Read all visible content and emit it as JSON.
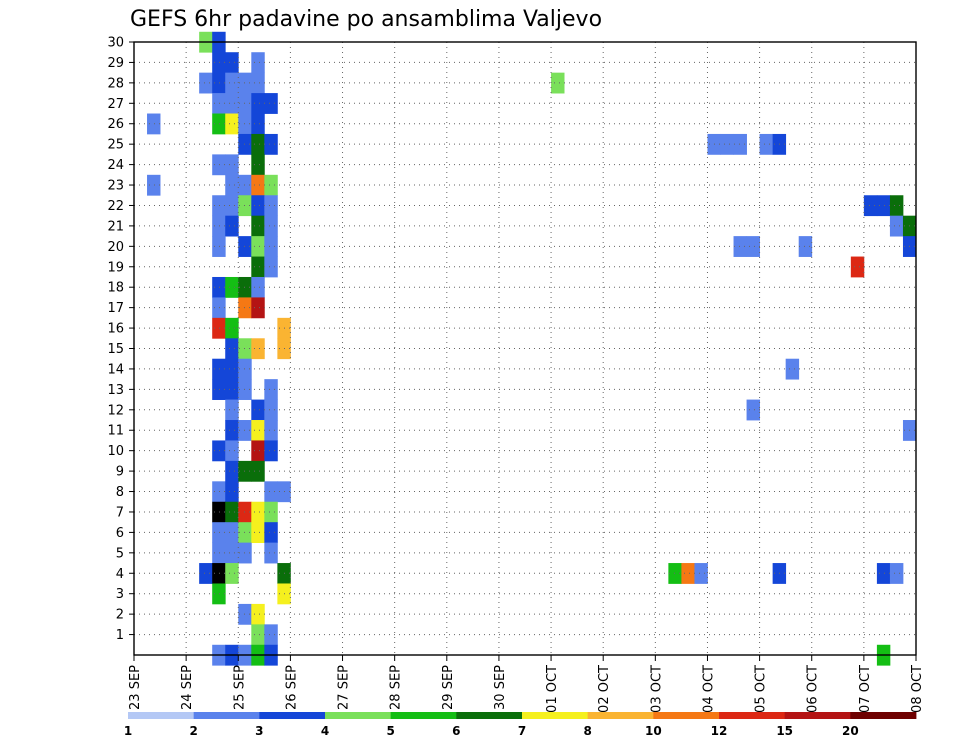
{
  "chart_data": {
    "type": "heatmap",
    "title": "GEFS 6hr padavine po ansamblima Valjevo",
    "y_categories": [
      "1",
      "2",
      "3",
      "4",
      "5",
      "6",
      "7",
      "8",
      "9",
      "10",
      "11",
      "12",
      "13",
      "14",
      "15",
      "16",
      "17",
      "18",
      "19",
      "20",
      "21",
      "22",
      "23",
      "24",
      "25",
      "26",
      "27",
      "28",
      "29",
      "30"
    ],
    "x_tick_labels": [
      "23 SEP",
      "24 SEP",
      "25 SEP",
      "26 SEP",
      "27 SEP",
      "28 SEP",
      "29 SEP",
      "30 SEP",
      "01 OCT",
      "02 OCT",
      "03 OCT",
      "04 OCT",
      "05 OCT",
      "06 OCT",
      "07 OCT",
      "08 OCT"
    ],
    "x_range_days": [
      0,
      15
    ],
    "steps_per_day": 4,
    "grid": "dotted",
    "color_scale": {
      "labels": [
        "1",
        "2",
        "3",
        "4",
        "5",
        "6",
        "7",
        "8",
        "10",
        "12",
        "15",
        "20"
      ],
      "colors": [
        "#b4c8f5",
        "#5a82ec",
        "#1446d8",
        "#7ae05a",
        "#14be14",
        "#0a6e0a",
        "#f5f01e",
        "#fab432",
        "#f57814",
        "#dc2814",
        "#b41414",
        "#6e0000"
      ]
    },
    "cells": [
      [
        30,
        5,
        3
      ],
      [
        30,
        6,
        2
      ],
      [
        29,
        6,
        2
      ],
      [
        29,
        7,
        2
      ],
      [
        29,
        9,
        1
      ],
      [
        28,
        5,
        1
      ],
      [
        28,
        6,
        2
      ],
      [
        28,
        7,
        1
      ],
      [
        28,
        8,
        1
      ],
      [
        28,
        9,
        1
      ],
      [
        28,
        32,
        3
      ],
      [
        27,
        6,
        1
      ],
      [
        27,
        7,
        1
      ],
      [
        27,
        8,
        1
      ],
      [
        27,
        9,
        2
      ],
      [
        27,
        10,
        2
      ],
      [
        26,
        1,
        1
      ],
      [
        26,
        6,
        4
      ],
      [
        26,
        7,
        6
      ],
      [
        26,
        8,
        1
      ],
      [
        26,
        9,
        2
      ],
      [
        25,
        8,
        2
      ],
      [
        25,
        9,
        5
      ],
      [
        25,
        10,
        2
      ],
      [
        25,
        44,
        1
      ],
      [
        25,
        45,
        1
      ],
      [
        25,
        46,
        1
      ],
      [
        25,
        48,
        1
      ],
      [
        25,
        49,
        2
      ],
      [
        24,
        6,
        1
      ],
      [
        24,
        7,
        1
      ],
      [
        24,
        9,
        5
      ],
      [
        23,
        1,
        1
      ],
      [
        23,
        7,
        1
      ],
      [
        23,
        8,
        1
      ],
      [
        23,
        9,
        8
      ],
      [
        23,
        10,
        3
      ],
      [
        22,
        6,
        1
      ],
      [
        22,
        7,
        1
      ],
      [
        22,
        8,
        3
      ],
      [
        22,
        9,
        2
      ],
      [
        22,
        10,
        1
      ],
      [
        22,
        56,
        2
      ],
      [
        22,
        57,
        2
      ],
      [
        22,
        58,
        5
      ],
      [
        21,
        6,
        1
      ],
      [
        21,
        7,
        2
      ],
      [
        21,
        9,
        5
      ],
      [
        21,
        10,
        1
      ],
      [
        21,
        58,
        1
      ],
      [
        21,
        59,
        5
      ],
      [
        20,
        6,
        1
      ],
      [
        20,
        8,
        2
      ],
      [
        20,
        9,
        3
      ],
      [
        20,
        10,
        1
      ],
      [
        20,
        46,
        1
      ],
      [
        20,
        47,
        1
      ],
      [
        20,
        51,
        1
      ],
      [
        20,
        59,
        2
      ],
      [
        19,
        9,
        5
      ],
      [
        19,
        10,
        1
      ],
      [
        19,
        55,
        9
      ],
      [
        18,
        6,
        2
      ],
      [
        18,
        7,
        4
      ],
      [
        18,
        8,
        5
      ],
      [
        18,
        9,
        1
      ],
      [
        17,
        6,
        1
      ],
      [
        17,
        8,
        8
      ],
      [
        17,
        9,
        10
      ],
      [
        16,
        6,
        9
      ],
      [
        16,
        7,
        4
      ],
      [
        16,
        11,
        7
      ],
      [
        15,
        7,
        2
      ],
      [
        15,
        8,
        3
      ],
      [
        15,
        9,
        7
      ],
      [
        15,
        11,
        7
      ],
      [
        14,
        6,
        2
      ],
      [
        14,
        7,
        2
      ],
      [
        14,
        8,
        1
      ],
      [
        14,
        50,
        1
      ],
      [
        13,
        6,
        2
      ],
      [
        13,
        7,
        2
      ],
      [
        13,
        8,
        1
      ],
      [
        13,
        10,
        1
      ],
      [
        12,
        7,
        1
      ],
      [
        12,
        9,
        2
      ],
      [
        12,
        10,
        1
      ],
      [
        12,
        47,
        1
      ],
      [
        11,
        7,
        2
      ],
      [
        11,
        8,
        1
      ],
      [
        11,
        9,
        6
      ],
      [
        11,
        10,
        1
      ],
      [
        11,
        59,
        1
      ],
      [
        10,
        6,
        2
      ],
      [
        10,
        7,
        1
      ],
      [
        10,
        9,
        10
      ],
      [
        10,
        10,
        2
      ],
      [
        9,
        7,
        2
      ],
      [
        9,
        8,
        5
      ],
      [
        9,
        9,
        5
      ],
      [
        8,
        6,
        1
      ],
      [
        8,
        7,
        2
      ],
      [
        8,
        10,
        1
      ],
      [
        8,
        11,
        1
      ],
      [
        7,
        6,
        12
      ],
      [
        7,
        7,
        5
      ],
      [
        7,
        8,
        9
      ],
      [
        7,
        9,
        6
      ],
      [
        7,
        10,
        3
      ],
      [
        6,
        6,
        1
      ],
      [
        6,
        7,
        1
      ],
      [
        6,
        8,
        3
      ],
      [
        6,
        9,
        6
      ],
      [
        6,
        10,
        2
      ],
      [
        5,
        6,
        1
      ],
      [
        5,
        7,
        1
      ],
      [
        5,
        8,
        1
      ],
      [
        5,
        10,
        1
      ],
      [
        4,
        5,
        2
      ],
      [
        4,
        6,
        12
      ],
      [
        4,
        7,
        3
      ],
      [
        4,
        11,
        5
      ],
      [
        4,
        41,
        4
      ],
      [
        4,
        42,
        8
      ],
      [
        4,
        43,
        1
      ],
      [
        4,
        49,
        2
      ],
      [
        4,
        57,
        2
      ],
      [
        4,
        58,
        1
      ],
      [
        3,
        6,
        4
      ],
      [
        3,
        11,
        6
      ],
      [
        2,
        8,
        1
      ],
      [
        2,
        9,
        6
      ],
      [
        1,
        9,
        3
      ],
      [
        1,
        10,
        1
      ],
      [
        0,
        6,
        1
      ],
      [
        0,
        7,
        2
      ],
      [
        0,
        8,
        1
      ],
      [
        0,
        9,
        4
      ],
      [
        0,
        10,
        2
      ],
      [
        0,
        57,
        4
      ]
    ]
  }
}
